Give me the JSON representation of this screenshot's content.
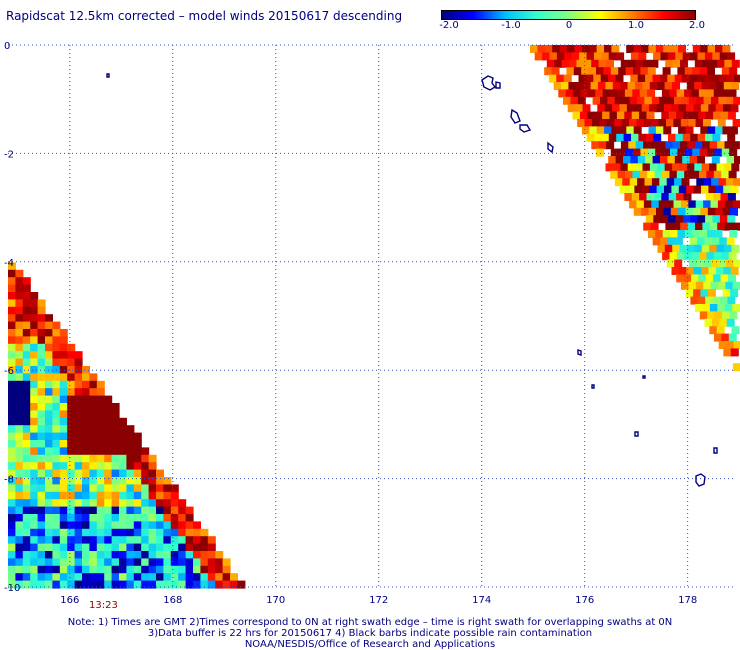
{
  "title": "Rapidscat 12.5km corrected – model winds 20150617 descending",
  "colorbar": {
    "labels": [
      "-2.0",
      "-1.0",
      "0",
      "1.0",
      "2.0"
    ],
    "label_values": [
      -2.0,
      -1.0,
      0,
      1.0,
      2.0
    ],
    "min": -2.0,
    "max": 2.0,
    "stops": [
      "#00007f",
      "#0000ff",
      "#00bfff",
      "#33ffcc",
      "#80ff80",
      "#ffff00",
      "#ff8000",
      "#ff0000",
      "#8b0000"
    ]
  },
  "axes": {
    "lon_min": 164.8,
    "lon_max": 178.9,
    "lat_min": -10.0,
    "lat_max": 0.0,
    "x_tick_values": [
      166,
      168,
      170,
      172,
      174,
      176,
      178
    ],
    "x_tick_labels": [
      "166",
      "168",
      "170",
      "172",
      "174",
      "176",
      "178"
    ],
    "y_tick_values": [
      0,
      -2,
      -4,
      -6,
      -8,
      -10
    ],
    "y_tick_labels": [
      "0",
      "-2",
      "-4",
      "-6",
      "-8",
      "-10"
    ],
    "grid": "dotted"
  },
  "swath_time": "13:23",
  "notes": [
    "Note: 1) Times are GMT 2)Times correspond to 0N at right swath edge – time is right swath for overlapping swaths at 0N",
    "3)Data buffer is 22 hrs for 20150617 4) Black barbs indicate possible rain contamination",
    "NOAA/NESDIS/Office of Research and Applications"
  ],
  "colors": {
    "text": "#000080",
    "grid": "#3050c0",
    "coast": "#000080",
    "time": "#8b0000"
  }
}
